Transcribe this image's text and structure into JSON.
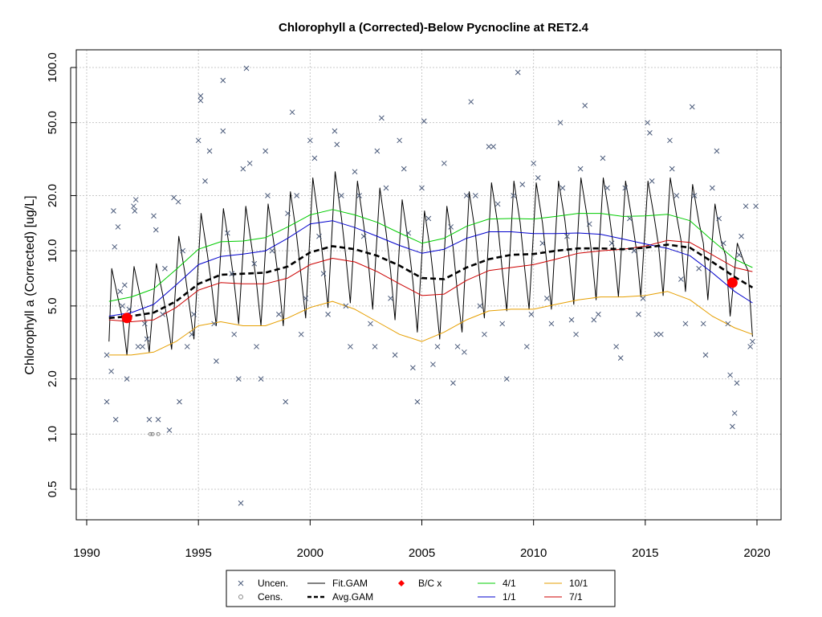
{
  "chart_data": {
    "type": "scatter",
    "title": "Chlorophyll a (Corrected)-Below Pycnocline at RET2.4",
    "xlabel": "",
    "ylabel": "Chlorophyll a (Corrected) [ug/L]",
    "y_scale": "log",
    "xlim": [
      1990,
      2020
    ],
    "ylim": [
      0.4,
      125
    ],
    "x_ticks": [
      "1990",
      "1995",
      "2000",
      "2005",
      "2010",
      "2015",
      "2020"
    ],
    "y_ticks": [
      "0.5",
      "1.0",
      "2.0",
      "5.0",
      "10.0",
      "20.0",
      "50.0",
      "100.0"
    ],
    "grid": true,
    "legend_position": "bottom",
    "legend": [
      {
        "label": "Uncen.",
        "symbol": "x",
        "color": "#4a5a7a"
      },
      {
        "label": "Fit.GAM",
        "symbol": "line",
        "color": "#000000"
      },
      {
        "label": "B/C x",
        "symbol": "diamond",
        "color": "#ff0000"
      },
      {
        "label": "4/1",
        "symbol": "line",
        "color": "#00cc00"
      },
      {
        "label": "10/1",
        "symbol": "line",
        "color": "#e69f00"
      },
      {
        "label": "Cens.",
        "symbol": "circle",
        "color": "#888888"
      },
      {
        "label": "Avg.GAM",
        "symbol": "dashed",
        "color": "#000000"
      },
      {
        "label": "1/1",
        "symbol": "line",
        "color": "#0000cc"
      },
      {
        "label": "7/1",
        "symbol": "line",
        "color": "#cc0000"
      }
    ],
    "colors": {
      "points": "#4a5a7a",
      "fit": "#000000",
      "avg": "#000000",
      "apr1": "#00cc00",
      "jan1": "#0000cc",
      "jul1": "#cc0000",
      "oct1": "#e69f00",
      "bc": "#ff0000",
      "grid": "#c8c8c8"
    },
    "series": [
      {
        "name": "Avg.GAM",
        "x": [
          1991,
          1992,
          1993,
          1994,
          1995,
          1996,
          1997,
          1998,
          1999,
          2000,
          2001,
          2002,
          2003,
          2004,
          2005,
          2006,
          2007,
          2008,
          2009,
          2010,
          2011,
          2012,
          2013,
          2014,
          2015,
          2016,
          2017,
          2018,
          2019,
          2019.8
        ],
        "values": [
          4.3,
          4.4,
          4.6,
          5.3,
          6.6,
          7.4,
          7.5,
          7.6,
          8.2,
          9.8,
          10.6,
          10.2,
          9.4,
          8.3,
          7.1,
          7.0,
          8.1,
          9.0,
          9.5,
          9.6,
          10.0,
          10.3,
          10.3,
          10.2,
          10.4,
          10.8,
          10.4,
          8.7,
          7.2,
          6.3
        ]
      },
      {
        "name": "1/1",
        "x": [
          1991,
          1992,
          1993,
          1994,
          1995,
          1996,
          1997,
          1998,
          1999,
          2000,
          2001,
          2002,
          2003,
          2004,
          2005,
          2006,
          2007,
          2008,
          2009,
          2010,
          2011,
          2012,
          2013,
          2014,
          2015,
          2016,
          2017,
          2018,
          2019,
          2019.8
        ],
        "values": [
          4.4,
          4.6,
          5.1,
          6.5,
          8.4,
          9.3,
          9.6,
          10.0,
          11.7,
          14.0,
          14.6,
          13.4,
          12.0,
          10.7,
          9.7,
          10.2,
          11.7,
          12.7,
          12.7,
          12.4,
          12.4,
          12.5,
          12.3,
          11.6,
          10.9,
          10.3,
          9.4,
          7.6,
          6.0,
          5.2
        ]
      },
      {
        "name": "4/1",
        "x": [
          1991,
          1992,
          1993,
          1994,
          1995,
          1996,
          1997,
          1998,
          1999,
          2000,
          2001,
          2002,
          2003,
          2004,
          2005,
          2006,
          2007,
          2008,
          2009,
          2010,
          2011,
          2012,
          2013,
          2014,
          2015,
          2016,
          2017,
          2018,
          2019,
          2019.8
        ],
        "values": [
          5.3,
          5.6,
          6.2,
          7.9,
          10.2,
          11.2,
          11.3,
          11.8,
          13.5,
          15.7,
          16.8,
          15.7,
          14.3,
          12.5,
          11.0,
          11.7,
          13.6,
          14.9,
          15.0,
          14.9,
          15.4,
          16.0,
          16.0,
          15.4,
          15.5,
          15.8,
          14.6,
          11.4,
          9.0,
          8.1
        ]
      },
      {
        "name": "7/1",
        "x": [
          1991,
          1992,
          1993,
          1994,
          1995,
          1996,
          1997,
          1998,
          1999,
          2000,
          2001,
          2002,
          2003,
          2004,
          2005,
          2006,
          2007,
          2008,
          2009,
          2010,
          2011,
          2012,
          2013,
          2014,
          2015,
          2016,
          2017,
          2018,
          2019,
          2019.8
        ],
        "values": [
          4.2,
          4.1,
          4.2,
          4.9,
          6.1,
          6.7,
          6.6,
          6.6,
          7.1,
          8.4,
          9.1,
          8.7,
          7.7,
          6.6,
          5.7,
          5.8,
          6.9,
          7.8,
          8.1,
          8.4,
          9.0,
          9.7,
          10.0,
          10.2,
          10.6,
          11.4,
          11.1,
          9.5,
          8.1,
          7.7
        ]
      },
      {
        "name": "10/1",
        "x": [
          1991,
          1992,
          1993,
          1994,
          1995,
          1996,
          1997,
          1998,
          1999,
          2000,
          2001,
          2002,
          2003,
          2004,
          2005,
          2006,
          2007,
          2008,
          2009,
          2010,
          2011,
          2012,
          2013,
          2014,
          2015,
          2016,
          2017,
          2018,
          2019,
          2019.8
        ],
        "values": [
          2.7,
          2.7,
          2.8,
          3.2,
          3.9,
          4.1,
          3.9,
          3.9,
          4.3,
          4.9,
          5.3,
          4.8,
          4.1,
          3.5,
          3.2,
          3.6,
          4.2,
          4.7,
          4.8,
          4.8,
          5.1,
          5.4,
          5.6,
          5.6,
          5.7,
          6.0,
          5.4,
          4.4,
          3.8,
          3.5
        ]
      },
      {
        "name": "Fit.GAM",
        "x": [
          1991.0,
          1991.12,
          1991.4,
          1991.6,
          1991.8,
          1992.12,
          1992.4,
          1992.6,
          1992.8,
          1993.12,
          1993.4,
          1993.6,
          1993.8,
          1994.12,
          1994.4,
          1994.6,
          1994.8,
          1995.12,
          1995.4,
          1995.6,
          1995.8,
          1996.12,
          1996.4,
          1996.6,
          1996.8,
          1997.12,
          1997.4,
          1997.6,
          1997.8,
          1998.12,
          1998.4,
          1998.6,
          1998.8,
          1999.12,
          1999.4,
          1999.6,
          1999.8,
          2000.12,
          2000.4,
          2000.6,
          2000.8,
          2001.12,
          2001.4,
          2001.6,
          2001.8,
          2002.12,
          2002.4,
          2002.6,
          2002.8,
          2003.12,
          2003.4,
          2003.6,
          2003.8,
          2004.12,
          2004.4,
          2004.6,
          2004.8,
          2005.12,
          2005.4,
          2005.6,
          2005.8,
          2006.12,
          2006.4,
          2006.6,
          2006.8,
          2007.12,
          2007.4,
          2007.6,
          2007.8,
          2008.12,
          2008.4,
          2008.6,
          2008.8,
          2009.12,
          2009.4,
          2009.6,
          2009.8,
          2010.12,
          2010.4,
          2010.6,
          2010.8,
          2011.12,
          2011.4,
          2011.6,
          2011.8,
          2012.12,
          2012.4,
          2012.6,
          2012.8,
          2013.12,
          2013.4,
          2013.6,
          2013.8,
          2014.12,
          2014.4,
          2014.6,
          2014.8,
          2015.12,
          2015.4,
          2015.6,
          2015.8,
          2016.12,
          2016.4,
          2016.6,
          2016.8,
          2017.12,
          2017.4,
          2017.6,
          2017.8,
          2018.12,
          2018.4,
          2018.6,
          2018.8,
          2019.12,
          2019.4,
          2019.6,
          2019.8
        ],
        "values": [
          3.2,
          8.0,
          5.5,
          4.3,
          2.7,
          8.2,
          5.6,
          4.3,
          2.8,
          8.5,
          5.8,
          4.3,
          2.9,
          12.0,
          7.5,
          5.0,
          3.3,
          16.0,
          9.6,
          6.3,
          3.9,
          17.0,
          10.2,
          6.7,
          4.0,
          17.5,
          10.2,
          6.7,
          3.9,
          18.0,
          10.5,
          6.7,
          3.9,
          21.0,
          12.0,
          7.2,
          4.3,
          25.0,
          14.0,
          8.5,
          4.9,
          27.0,
          15.2,
          9.2,
          5.2,
          24.0,
          13.8,
          8.8,
          4.8,
          22.0,
          12.6,
          7.8,
          4.2,
          19.0,
          11.0,
          6.8,
          3.6,
          16.5,
          9.7,
          5.8,
          3.3,
          17.5,
          10.4,
          5.8,
          3.6,
          21.0,
          12.4,
          6.9,
          4.3,
          23.5,
          13.9,
          7.8,
          4.7,
          24.0,
          14.2,
          8.1,
          4.8,
          23.5,
          14.2,
          8.4,
          4.8,
          24.0,
          14.8,
          9.0,
          5.1,
          25.0,
          15.3,
          9.7,
          5.4,
          25.0,
          15.3,
          10.0,
          5.6,
          24.0,
          15.0,
          10.2,
          5.6,
          24.0,
          15.2,
          10.6,
          5.7,
          25.0,
          15.6,
          11.4,
          6.0,
          23.0,
          14.4,
          11.0,
          5.4,
          18.0,
          11.2,
          9.4,
          4.4,
          11.0,
          8.8,
          7.8,
          3.4
        ]
      }
    ],
    "uncensored_points": [
      [
        1990.9,
        1.5
      ],
      [
        1990.9,
        2.7
      ],
      [
        1991.1,
        2.2
      ],
      [
        1991.2,
        16.5
      ],
      [
        1991.25,
        10.5
      ],
      [
        1991.3,
        1.2
      ],
      [
        1991.4,
        13.5
      ],
      [
        1991.5,
        6.0
      ],
      [
        1991.6,
        5.0
      ],
      [
        1991.7,
        6.5
      ],
      [
        1991.8,
        2.0
      ],
      [
        1991.9,
        4.8
      ],
      [
        1992.1,
        17.5
      ],
      [
        1992.2,
        19.0
      ],
      [
        1992.15,
        16.5
      ],
      [
        1992.3,
        3.0
      ],
      [
        1992.5,
        3.0
      ],
      [
        1992.6,
        4.0
      ],
      [
        1992.7,
        3.3
      ],
      [
        1992.8,
        1.2
      ],
      [
        1993.0,
        15.5
      ],
      [
        1993.1,
        13.0
      ],
      [
        1993.2,
        1.2
      ],
      [
        1993.4,
        4.5
      ],
      [
        1993.5,
        8.0
      ],
      [
        1993.7,
        1.05
      ],
      [
        1993.9,
        19.5
      ],
      [
        1994.1,
        18.5
      ],
      [
        1994.15,
        1.5
      ],
      [
        1994.3,
        10.0
      ],
      [
        1994.5,
        3.0
      ],
      [
        1994.7,
        3.5
      ],
      [
        1994.8,
        4.5
      ],
      [
        1995.0,
        40.0
      ],
      [
        1995.1,
        70.0
      ],
      [
        1995.1,
        66.0
      ],
      [
        1995.3,
        24.0
      ],
      [
        1995.5,
        35.0
      ],
      [
        1995.7,
        4.0
      ],
      [
        1995.8,
        2.5
      ],
      [
        1996.1,
        85.0
      ],
      [
        1996.1,
        45.0
      ],
      [
        1996.3,
        12.5
      ],
      [
        1996.5,
        7.5
      ],
      [
        1996.6,
        3.5
      ],
      [
        1996.8,
        2.0
      ],
      [
        1996.9,
        0.42
      ],
      [
        1997.0,
        28.0
      ],
      [
        1997.15,
        99.0
      ],
      [
        1997.3,
        30.0
      ],
      [
        1997.5,
        8.5
      ],
      [
        1997.6,
        3.0
      ],
      [
        1997.8,
        2.0
      ],
      [
        1998.0,
        35.0
      ],
      [
        1998.1,
        20.0
      ],
      [
        1998.3,
        10.0
      ],
      [
        1998.6,
        4.5
      ],
      [
        1998.9,
        1.5
      ],
      [
        1999.0,
        16.0
      ],
      [
        1999.2,
        57.0
      ],
      [
        1999.4,
        20.0
      ],
      [
        1999.6,
        3.5
      ],
      [
        1999.8,
        5.5
      ],
      [
        2000.0,
        40.0
      ],
      [
        2000.2,
        32.0
      ],
      [
        2000.4,
        12.0
      ],
      [
        2000.6,
        7.5
      ],
      [
        2000.8,
        4.5
      ],
      [
        2001.1,
        45.0
      ],
      [
        2001.2,
        38.0
      ],
      [
        2001.4,
        20.0
      ],
      [
        2001.6,
        5.0
      ],
      [
        2001.8,
        3.0
      ],
      [
        2002.0,
        27.0
      ],
      [
        2002.2,
        20.0
      ],
      [
        2002.4,
        12.0
      ],
      [
        2002.7,
        4.0
      ],
      [
        2002.9,
        3.0
      ],
      [
        2003.0,
        35.0
      ],
      [
        2003.2,
        53.0
      ],
      [
        2003.4,
        22.0
      ],
      [
        2003.6,
        5.5
      ],
      [
        2003.8,
        2.7
      ],
      [
        2004.0,
        40.0
      ],
      [
        2004.2,
        28.0
      ],
      [
        2004.4,
        12.5
      ],
      [
        2004.6,
        2.3
      ],
      [
        2004.8,
        1.5
      ],
      [
        2005.0,
        22.0
      ],
      [
        2005.1,
        51.0
      ],
      [
        2005.3,
        15.0
      ],
      [
        2005.5,
        2.4
      ],
      [
        2005.7,
        3.0
      ],
      [
        2006.0,
        30.0
      ],
      [
        2006.3,
        13.5
      ],
      [
        2006.4,
        1.9
      ],
      [
        2006.6,
        3.0
      ],
      [
        2006.9,
        2.8
      ],
      [
        2007.0,
        20.0
      ],
      [
        2007.2,
        65.0
      ],
      [
        2007.4,
        20.0
      ],
      [
        2007.6,
        5.0
      ],
      [
        2007.8,
        3.5
      ],
      [
        2008.0,
        37.0
      ],
      [
        2008.2,
        37.0
      ],
      [
        2008.4,
        18.0
      ],
      [
        2008.6,
        4.0
      ],
      [
        2008.8,
        2.0
      ],
      [
        2009.1,
        20.0
      ],
      [
        2009.3,
        94.0
      ],
      [
        2009.5,
        23.0
      ],
      [
        2009.7,
        3.0
      ],
      [
        2009.9,
        4.5
      ],
      [
        2010.0,
        30.0
      ],
      [
        2010.2,
        25.0
      ],
      [
        2010.4,
        11.0
      ],
      [
        2010.6,
        5.5
      ],
      [
        2010.8,
        4.0
      ],
      [
        2011.2,
        50.0
      ],
      [
        2011.3,
        22.0
      ],
      [
        2011.5,
        12.0
      ],
      [
        2011.7,
        4.2
      ],
      [
        2011.9,
        3.5
      ],
      [
        2012.1,
        28.0
      ],
      [
        2012.3,
        62.0
      ],
      [
        2012.5,
        14.0
      ],
      [
        2012.7,
        4.2
      ],
      [
        2012.9,
        4.5
      ],
      [
        2013.1,
        32.0
      ],
      [
        2013.3,
        22.0
      ],
      [
        2013.5,
        11.0
      ],
      [
        2013.7,
        3.0
      ],
      [
        2013.9,
        2.6
      ],
      [
        2014.1,
        22.0
      ],
      [
        2014.3,
        15.0
      ],
      [
        2014.5,
        10.0
      ],
      [
        2014.7,
        4.5
      ],
      [
        2014.9,
        5.5
      ],
      [
        2015.1,
        50.0
      ],
      [
        2015.2,
        44.0
      ],
      [
        2015.3,
        24.0
      ],
      [
        2015.5,
        3.5
      ],
      [
        2015.7,
        3.5
      ],
      [
        2016.1,
        40.0
      ],
      [
        2016.2,
        28.0
      ],
      [
        2016.4,
        20.0
      ],
      [
        2016.6,
        7.0
      ],
      [
        2016.8,
        4.0
      ],
      [
        2017.1,
        61.0
      ],
      [
        2017.2,
        20.0
      ],
      [
        2017.4,
        8.0
      ],
      [
        2017.6,
        4.0
      ],
      [
        2017.7,
        2.7
      ],
      [
        2018.0,
        22.0
      ],
      [
        2018.2,
        35.0
      ],
      [
        2018.3,
        15.0
      ],
      [
        2018.5,
        11.0
      ],
      [
        2018.7,
        4.0
      ],
      [
        2018.8,
        2.1
      ],
      [
        2018.9,
        1.1
      ],
      [
        2019.0,
        1.3
      ],
      [
        2019.1,
        1.9
      ],
      [
        2019.2,
        9.5
      ],
      [
        2019.3,
        12.0
      ],
      [
        2019.5,
        17.5
      ],
      [
        2019.7,
        3.0
      ],
      [
        2019.8,
        3.2
      ],
      [
        2019.95,
        17.5
      ]
    ],
    "censored_points": [
      [
        1992.85,
        1.0
      ],
      [
        1992.95,
        1.0
      ],
      [
        1993.2,
        1.0
      ]
    ],
    "bc_points": [
      [
        1991.8,
        4.3
      ],
      [
        2018.9,
        6.7
      ]
    ]
  }
}
